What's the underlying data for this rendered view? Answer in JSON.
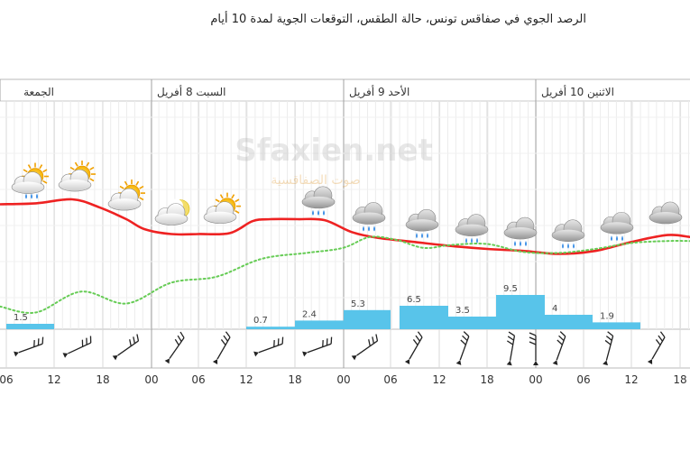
{
  "title": "الرصد الجوي في صفاقس تونس، حالة الطقس، التوقعات الجوية لمدة 10 أيام",
  "watermark": {
    "main": "Sfaxien.net",
    "sub": "صوت الصفاقسية"
  },
  "days": [
    "الجمعة",
    "السبت 8 أفريل",
    "الأحد 9 أفريل",
    "الاثنين 10 أفريل"
  ],
  "chart_data": {
    "type": "line",
    "title": "",
    "hours_axis_labels": [
      "06",
      "12",
      "18",
      "00",
      "06",
      "12",
      "18",
      "00",
      "06",
      "12",
      "18",
      "00",
      "06",
      "12",
      "18"
    ],
    "hour_tick_x": [
      7,
      60,
      114,
      168,
      220,
      273,
      327,
      381,
      433,
      487,
      540,
      594,
      647,
      700,
      754
    ],
    "series": [
      {
        "name": "",
        "color": "#ee2222",
        "x": [
          0,
          40,
          80,
          110,
          140,
          160,
          190,
          220,
          255,
          280,
          300,
          330,
          360,
          390,
          420,
          460,
          500,
          540,
          580,
          620,
          660,
          700,
          740,
          765
        ],
        "y": [
          18.5,
          18.6,
          19.0,
          18.2,
          17.0,
          16.0,
          15.5,
          15.5,
          15.6,
          16.8,
          17.0,
          17.0,
          16.9,
          15.7,
          15.1,
          14.7,
          14.3,
          14.0,
          13.8,
          13.5,
          13.8,
          14.7,
          15.4,
          15.2
        ]
      },
      {
        "name": "",
        "color": "#66cc55",
        "dotted": true,
        "x": [
          0,
          40,
          90,
          140,
          190,
          240,
          290,
          340,
          380,
          410,
          440,
          470,
          500,
          540,
          580,
          620,
          660,
          700,
          740,
          765
        ],
        "y": [
          8.2,
          7.6,
          9.7,
          8.5,
          10.6,
          11.2,
          13.0,
          13.6,
          14.1,
          15.2,
          14.9,
          14.1,
          14.4,
          14.5,
          13.7,
          13.6,
          14.0,
          14.6,
          14.8,
          14.8
        ]
      }
    ],
    "precip_bars": [
      {
        "x0": 7,
        "x1": 60,
        "value": 1.5
      },
      {
        "x0": 273,
        "x1": 327,
        "value": 0.7
      },
      {
        "x0": 327,
        "x1": 381,
        "value": 2.4
      },
      {
        "x0": 381,
        "x1": 433,
        "value": 5.3
      },
      {
        "x0": 443,
        "x1": 497,
        "value": 6.5
      },
      {
        "x0": 497,
        "x1": 550,
        "value": 3.5
      },
      {
        "x0": 550,
        "x1": 604,
        "value": 9.5
      },
      {
        "x0": 604,
        "x1": 657,
        "value": 4
      },
      {
        "x0": 657,
        "x1": 710,
        "value": 1.9
      }
    ],
    "weather_icons": [
      {
        "x": 35,
        "type": "sun-cloud-rain"
      },
      {
        "x": 87,
        "type": "sun-cloud"
      },
      {
        "x": 142,
        "type": "sun-cloud"
      },
      {
        "x": 194,
        "type": "moon-cloud"
      },
      {
        "x": 248,
        "type": "sun-cloud"
      },
      {
        "x": 353,
        "type": "cloud-rain"
      },
      {
        "x": 409,
        "type": "cloud-rain"
      },
      {
        "x": 468,
        "type": "cloud-rain"
      },
      {
        "x": 523,
        "type": "cloud-rain"
      },
      {
        "x": 577,
        "type": "cloud-rain"
      },
      {
        "x": 630,
        "type": "cloud-rain"
      },
      {
        "x": 684,
        "type": "cloud-rain"
      },
      {
        "x": 738,
        "type": "cloud"
      }
    ],
    "wind": [
      {
        "x": 34,
        "angle": -110
      },
      {
        "x": 88,
        "angle": -115
      },
      {
        "x": 142,
        "angle": -125
      },
      {
        "x": 196,
        "angle": -145
      },
      {
        "x": 248,
        "angle": -150
      },
      {
        "x": 300,
        "angle": -110
      },
      {
        "x": 354,
        "angle": -110
      },
      {
        "x": 407,
        "angle": -125
      },
      {
        "x": 461,
        "angle": -150
      },
      {
        "x": 515,
        "angle": -160
      },
      {
        "x": 568,
        "angle": -170
      },
      {
        "x": 594,
        "angle": 180
      },
      {
        "x": 622,
        "angle": -160
      },
      {
        "x": 676,
        "angle": -165
      },
      {
        "x": 730,
        "angle": -150
      }
    ],
    "legend": "none",
    "grid": true
  }
}
